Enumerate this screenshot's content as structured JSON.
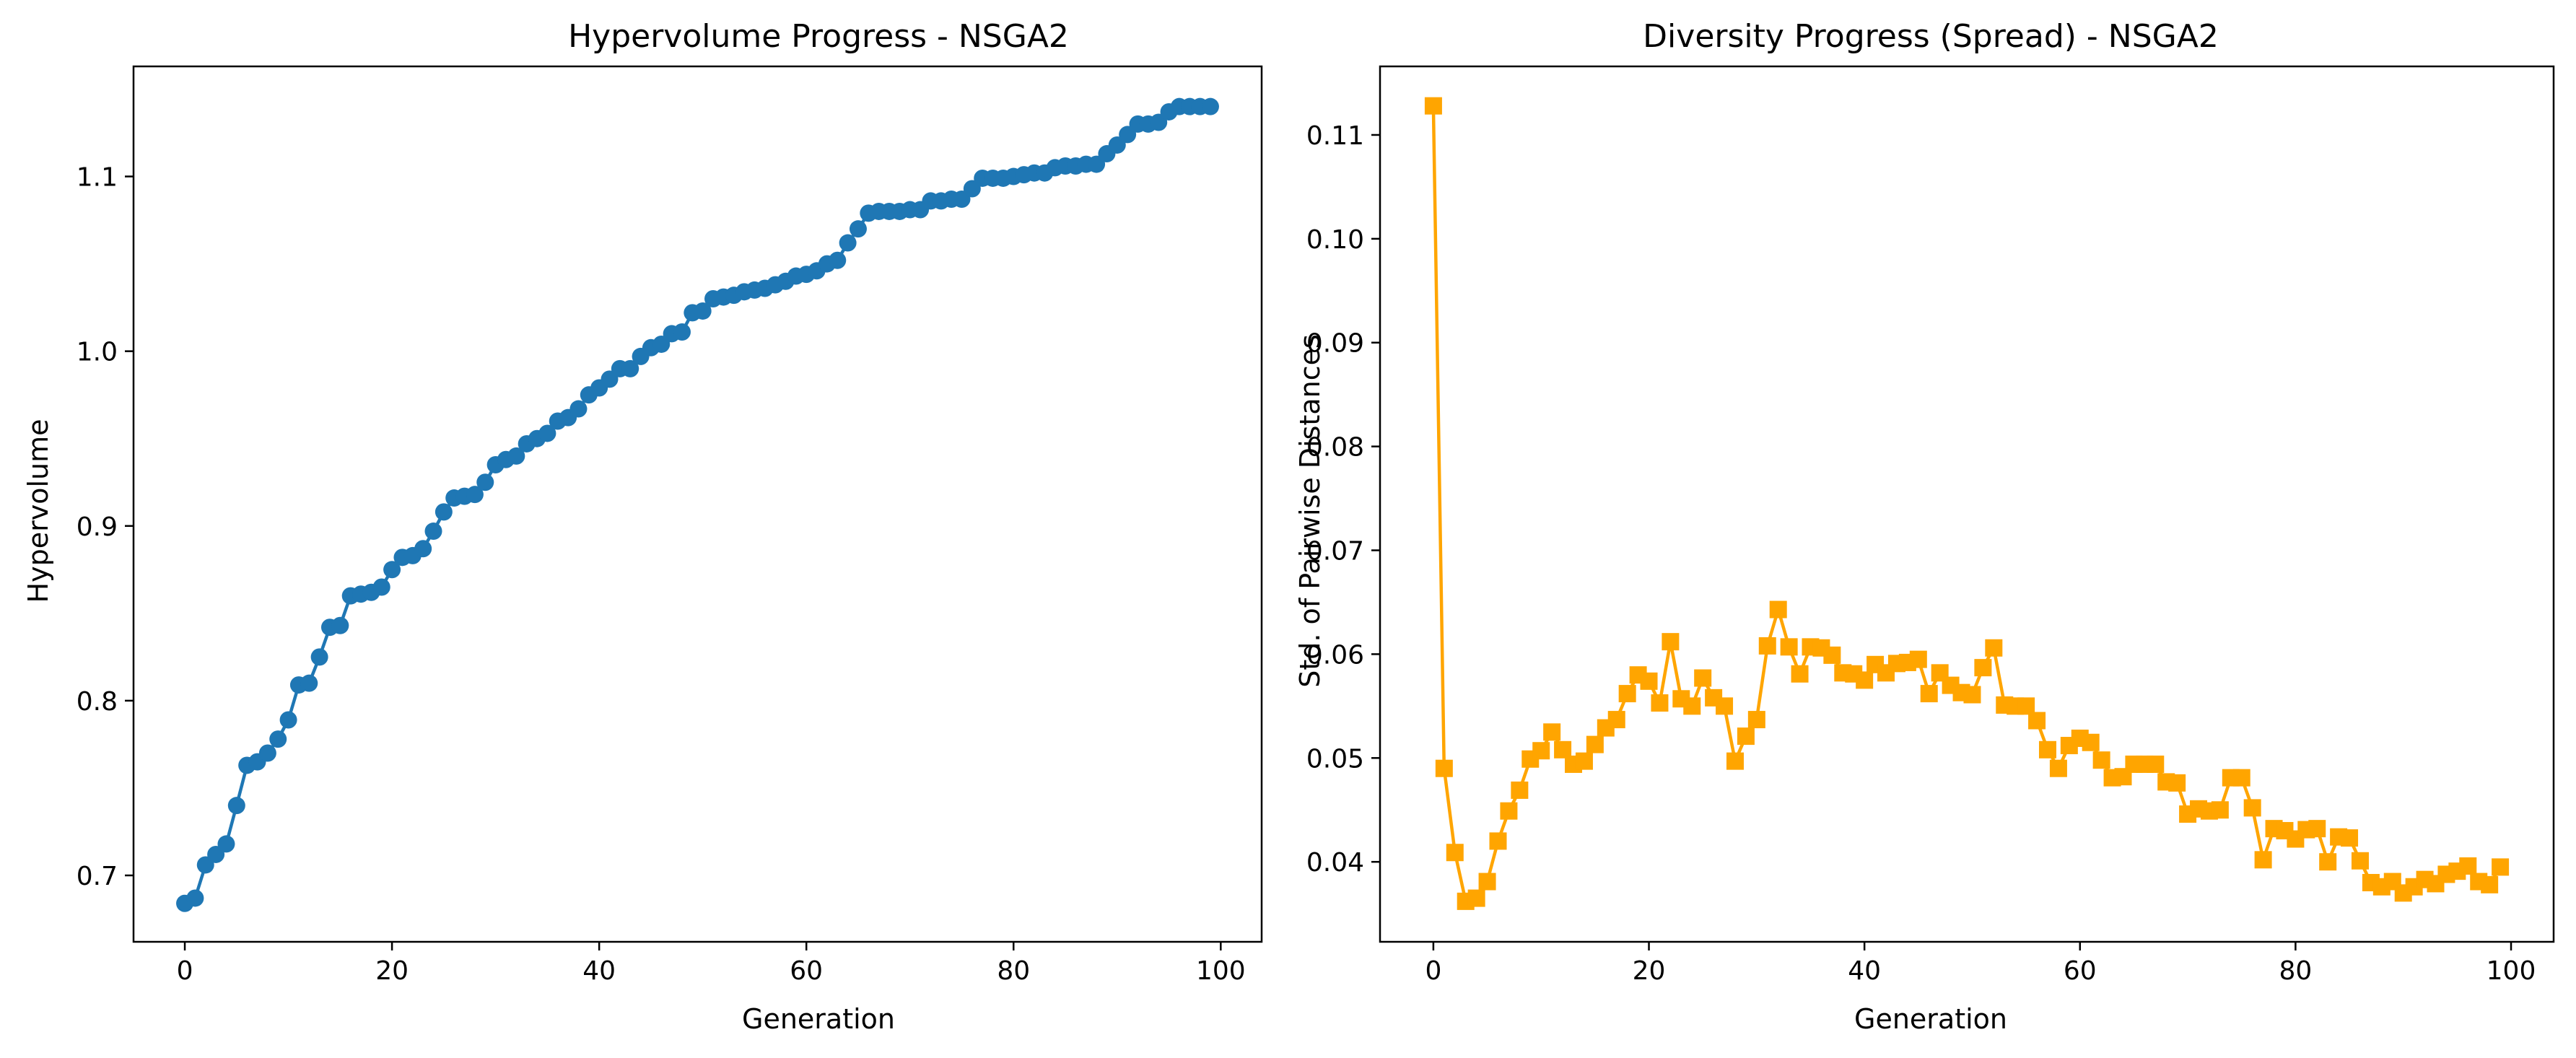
{
  "chart_data": [
    {
      "type": "line",
      "title": "Hypervolume Progress - NSGA2",
      "xlabel": "Generation",
      "ylabel": "Hypervolume",
      "xlim": [
        -4.95,
        103.95
      ],
      "ylim": [
        0.662,
        1.163
      ],
      "xticks": [
        0,
        20,
        40,
        60,
        80,
        100
      ],
      "yticks": [
        0.7,
        0.8,
        0.9,
        1.0,
        1.1
      ],
      "ytick_labels": [
        "0.7",
        "0.8",
        "0.9",
        "1.0",
        "1.1"
      ],
      "grid": false,
      "marker": "circle",
      "color": "#1f77b4",
      "series": [
        {
          "x": [
            0,
            1,
            2,
            3,
            4,
            5,
            6,
            7,
            8,
            9,
            10,
            11,
            12,
            13,
            14,
            15,
            16,
            17,
            18,
            19,
            20,
            21,
            22,
            23,
            24,
            25,
            26,
            27,
            28,
            29,
            30,
            31,
            32,
            33,
            34,
            35,
            36,
            37,
            38,
            39,
            40,
            41,
            42,
            43,
            44,
            45,
            46,
            47,
            48,
            49,
            50,
            51,
            52,
            53,
            54,
            55,
            56,
            57,
            58,
            59,
            60,
            61,
            62,
            63,
            64,
            65,
            66,
            67,
            68,
            69,
            70,
            71,
            72,
            73,
            74,
            75,
            76,
            77,
            78,
            79,
            80,
            81,
            82,
            83,
            84,
            85,
            86,
            87,
            88,
            89,
            90,
            91,
            92,
            93,
            94,
            95,
            96,
            97,
            98,
            99
          ],
          "values": [
            0.684,
            0.687,
            0.706,
            0.712,
            0.718,
            0.74,
            0.763,
            0.765,
            0.77,
            0.778,
            0.789,
            0.809,
            0.81,
            0.825,
            0.842,
            0.843,
            0.86,
            0.861,
            0.862,
            0.865,
            0.875,
            0.882,
            0.883,
            0.887,
            0.897,
            0.908,
            0.916,
            0.917,
            0.918,
            0.925,
            0.935,
            0.938,
            0.94,
            0.947,
            0.95,
            0.953,
            0.96,
            0.962,
            0.967,
            0.975,
            0.979,
            0.984,
            0.99,
            0.99,
            0.997,
            1.002,
            1.004,
            1.01,
            1.011,
            1.022,
            1.023,
            1.03,
            1.031,
            1.032,
            1.034,
            1.035,
            1.036,
            1.038,
            1.04,
            1.043,
            1.044,
            1.046,
            1.05,
            1.052,
            1.062,
            1.07,
            1.079,
            1.08,
            1.08,
            1.08,
            1.081,
            1.081,
            1.086,
            1.086,
            1.087,
            1.087,
            1.093,
            1.099,
            1.099,
            1.099,
            1.1,
            1.101,
            1.102,
            1.102,
            1.105,
            1.106,
            1.106,
            1.107,
            1.107,
            1.113,
            1.118,
            1.124,
            1.13,
            1.13,
            1.131,
            1.137,
            1.14,
            1.14,
            1.14,
            1.14
          ]
        }
      ]
    },
    {
      "type": "line",
      "title": "Diversity Progress (Spread) - NSGA2",
      "xlabel": "Generation",
      "ylabel": "Std. of Pairwise Distances",
      "xlim": [
        -4.95,
        103.95
      ],
      "ylim": [
        0.0323,
        0.1166
      ],
      "xticks": [
        0,
        20,
        40,
        60,
        80,
        100
      ],
      "yticks": [
        0.04,
        0.05,
        0.06,
        0.07,
        0.08,
        0.09,
        0.1,
        0.11
      ],
      "ytick_labels": [
        "0.04",
        "0.05",
        "0.06",
        "0.07",
        "0.08",
        "0.09",
        "0.10",
        "0.11"
      ],
      "grid": false,
      "marker": "square",
      "color": "#ffa500",
      "series": [
        {
          "x": [
            0,
            1,
            2,
            3,
            4,
            5,
            6,
            7,
            8,
            9,
            10,
            11,
            12,
            13,
            14,
            15,
            16,
            17,
            18,
            19,
            20,
            21,
            22,
            23,
            24,
            25,
            26,
            27,
            28,
            29,
            30,
            31,
            32,
            33,
            34,
            35,
            36,
            37,
            38,
            39,
            40,
            41,
            42,
            43,
            44,
            45,
            46,
            47,
            48,
            49,
            50,
            51,
            52,
            53,
            54,
            55,
            56,
            57,
            58,
            59,
            60,
            61,
            62,
            63,
            64,
            65,
            66,
            67,
            68,
            69,
            70,
            71,
            72,
            73,
            74,
            75,
            76,
            77,
            78,
            79,
            80,
            81,
            82,
            83,
            84,
            85,
            86,
            87,
            88,
            89,
            90,
            91,
            92,
            93,
            94,
            95,
            96,
            97,
            98,
            99
          ],
          "values": [
            0.1128,
            0.049,
            0.0409,
            0.0362,
            0.0365,
            0.0381,
            0.042,
            0.0449,
            0.0469,
            0.0499,
            0.0507,
            0.0525,
            0.0508,
            0.0494,
            0.0497,
            0.0513,
            0.0529,
            0.0537,
            0.0562,
            0.058,
            0.0574,
            0.0553,
            0.0612,
            0.0557,
            0.055,
            0.0577,
            0.0558,
            0.055,
            0.0497,
            0.0521,
            0.0537,
            0.0608,
            0.0643,
            0.0607,
            0.0581,
            0.0607,
            0.0606,
            0.0599,
            0.0582,
            0.0581,
            0.0575,
            0.059,
            0.0582,
            0.0591,
            0.0592,
            0.0595,
            0.0562,
            0.0582,
            0.057,
            0.0563,
            0.0561,
            0.0587,
            0.0606,
            0.0551,
            0.055,
            0.055,
            0.0536,
            0.0508,
            0.049,
            0.0512,
            0.0519,
            0.0515,
            0.0498,
            0.0481,
            0.0482,
            0.0494,
            0.0494,
            0.0494,
            0.0477,
            0.0476,
            0.0446,
            0.0451,
            0.0449,
            0.045,
            0.0481,
            0.0481,
            0.0452,
            0.0402,
            0.0432,
            0.043,
            0.0422,
            0.0431,
            0.0432,
            0.04,
            0.0424,
            0.0423,
            0.0401,
            0.038,
            0.0376,
            0.0381,
            0.037,
            0.0376,
            0.0383,
            0.0379,
            0.0388,
            0.0391,
            0.0396,
            0.0381,
            0.0378,
            0.0395
          ]
        }
      ]
    }
  ]
}
